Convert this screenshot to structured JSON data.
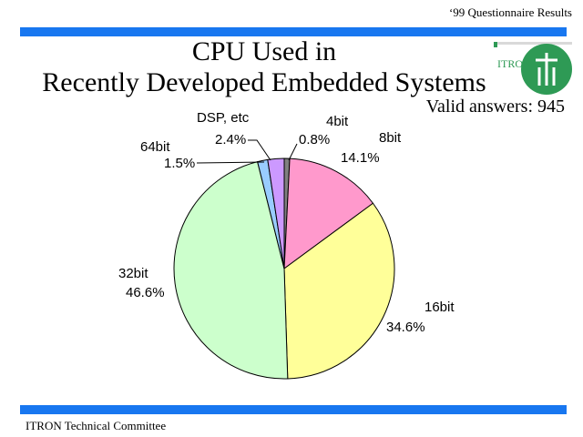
{
  "header": {
    "note": "‘99 Questionnaire Results"
  },
  "title": {
    "line1": "CPU Used in",
    "line2": "Recently Developed Embedded Systems"
  },
  "valid_answers": "Valid answers: 945",
  "footer": "ITRON Technical Committee",
  "logo": {
    "text": "ITRON"
  },
  "colors": {
    "accent_bar": "#1877f0",
    "logo_green": "#2e9a55"
  },
  "chart_data": {
    "type": "pie",
    "title": "CPU Used in Recently Developed Embedded Systems",
    "total_note": "Valid answers: 945",
    "slices": [
      {
        "name": "4bit",
        "value": 0.8,
        "label": "0.8%",
        "color": "#808080"
      },
      {
        "name": "8bit",
        "value": 14.1,
        "label": "14.1%",
        "color": "#ff99cc"
      },
      {
        "name": "16bit",
        "value": 34.6,
        "label": "34.6%",
        "color": "#ffff99"
      },
      {
        "name": "32bit",
        "value": 46.6,
        "label": "46.6%",
        "color": "#ccffcc"
      },
      {
        "name": "64bit",
        "value": 1.5,
        "label": "1.5%",
        "color": "#99ccff"
      },
      {
        "name": "DSP, etc",
        "value": 2.4,
        "label": "2.4%",
        "color": "#cc99ff"
      }
    ]
  }
}
